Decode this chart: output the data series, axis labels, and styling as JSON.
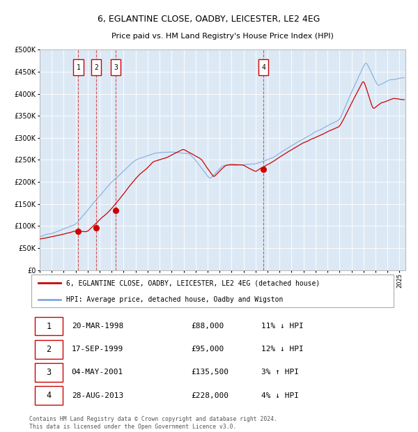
{
  "title": "6, EGLANTINE CLOSE, OADBY, LEICESTER, LE2 4EG",
  "subtitle": "Price paid vs. HM Land Registry's House Price Index (HPI)",
  "ylim": [
    0,
    500000
  ],
  "yticks": [
    0,
    50000,
    100000,
    150000,
    200000,
    250000,
    300000,
    350000,
    400000,
    450000,
    500000
  ],
  "ytick_labels": [
    "£0",
    "£50K",
    "£100K",
    "£150K",
    "£200K",
    "£250K",
    "£300K",
    "£350K",
    "£400K",
    "£450K",
    "£500K"
  ],
  "xlim_start": 1995.0,
  "xlim_end": 2025.5,
  "background_color": "#dce9f5",
  "grid_color": "#ffffff",
  "red_line_color": "#cc0000",
  "blue_line_color": "#7faadd",
  "sale_years": [
    1998.22,
    1999.72,
    2001.34,
    2013.66
  ],
  "sale_prices": [
    88000,
    95000,
    135500,
    228000
  ],
  "sale_labels": [
    "1",
    "2",
    "3",
    "4"
  ],
  "legend_red_label": "6, EGLANTINE CLOSE, OADBY, LEICESTER, LE2 4EG (detached house)",
  "legend_blue_label": "HPI: Average price, detached house, Oadby and Wigston",
  "table_rows": [
    {
      "num": "1",
      "date": "20-MAR-1998",
      "price": "£88,000",
      "hpi": "11% ↓ HPI"
    },
    {
      "num": "2",
      "date": "17-SEP-1999",
      "price": "£95,000",
      "hpi": "12% ↓ HPI"
    },
    {
      "num": "3",
      "date": "04-MAY-2001",
      "price": "£135,500",
      "hpi": "3% ↑ HPI"
    },
    {
      "num": "4",
      "date": "28-AUG-2013",
      "price": "£228,000",
      "hpi": "4% ↓ HPI"
    }
  ],
  "footer": "Contains HM Land Registry data © Crown copyright and database right 2024.\nThis data is licensed under the Open Government Licence v3.0.",
  "xtick_years": [
    1995,
    1996,
    1997,
    1998,
    1999,
    2000,
    2001,
    2002,
    2003,
    2004,
    2005,
    2006,
    2007,
    2008,
    2009,
    2010,
    2011,
    2012,
    2013,
    2014,
    2015,
    2016,
    2017,
    2018,
    2019,
    2020,
    2021,
    2022,
    2023,
    2024,
    2025
  ]
}
